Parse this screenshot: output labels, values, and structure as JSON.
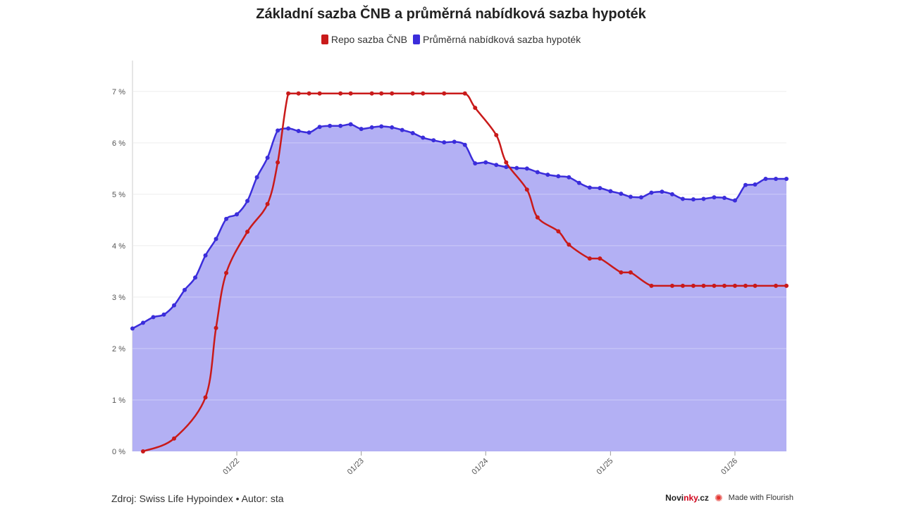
{
  "colors": {
    "repo": "#c91a1a",
    "mortgage": "#3b2ddb",
    "area": "#b3b0f4",
    "grid": "#e8e8e8",
    "brand_red": "#d0021b"
  },
  "footer": {
    "source": "Zdroj: Swiss Life Hypoindex • Autor: sta",
    "brand_a": "Novi",
    "brand_b": "nky",
    "brand_c": ".cz",
    "flourish": "Made with Flourish",
    "flourish_icon": "flourish-burst-icon"
  },
  "chart_data": {
    "type": "line",
    "title": "Základní sazba ČNB a průměrná nabídková sazba hypoték",
    "xlabel": "",
    "ylabel": "",
    "ylim": [
      0,
      7.6
    ],
    "xlim": [
      "2021-03-01",
      "2026-06-01"
    ],
    "grid": true,
    "legend_position": "top-center",
    "yticks": [
      0,
      1,
      2,
      3,
      4,
      5,
      6,
      7
    ],
    "ytick_labels": [
      "0 %",
      "1 %",
      "2 %",
      "3 %",
      "4 %",
      "5 %",
      "6 %",
      "7 %"
    ],
    "xticks": [
      "2022-01-01",
      "2023-01-01",
      "2024-01-01",
      "2025-01-01",
      "2026-01-01"
    ],
    "xtick_labels": [
      "01/22",
      "01/23",
      "01/24",
      "01/25",
      "01/26"
    ],
    "series": [
      {
        "name": "Repo sazba ČNB",
        "color": "#c91a1a",
        "x": [
          "2021-04-01",
          "2021-07-01",
          "2021-10-01",
          "2021-11-01",
          "2021-12-01",
          "2022-02-01",
          "2022-04-01",
          "2022-05-01",
          "2022-06-01",
          "2022-07-01",
          "2022-08-01",
          "2022-09-01",
          "2022-11-01",
          "2022-12-01",
          "2023-02-01",
          "2023-03-01",
          "2023-04-01",
          "2023-06-01",
          "2023-07-01",
          "2023-09-01",
          "2023-11-01",
          "2023-12-01",
          "2024-02-01",
          "2024-03-01",
          "2024-05-01",
          "2024-06-01",
          "2024-08-01",
          "2024-09-01",
          "2024-11-01",
          "2024-12-01",
          "2025-02-01",
          "2025-03-01",
          "2025-05-01",
          "2025-07-01",
          "2025-08-01",
          "2025-09-01",
          "2025-10-01",
          "2025-11-01",
          "2025-12-01",
          "2026-01-01",
          "2026-02-01",
          "2026-03-01",
          "2026-05-01",
          "2026-06-01"
        ],
        "values": [
          0.0,
          0.25,
          1.05,
          2.4,
          3.47,
          4.27,
          4.81,
          5.62,
          6.96,
          6.96,
          6.96,
          6.96,
          6.96,
          6.96,
          6.96,
          6.96,
          6.96,
          6.96,
          6.96,
          6.96,
          6.96,
          6.68,
          6.15,
          5.62,
          5.09,
          4.55,
          4.28,
          4.02,
          3.75,
          3.75,
          3.48,
          3.48,
          3.22,
          3.22,
          3.22,
          3.22,
          3.22,
          3.22,
          3.22,
          3.22,
          3.22,
          3.22,
          3.22,
          3.22
        ]
      },
      {
        "name": "Průměrná nabídková sazba hypoték",
        "color": "#3b2ddb",
        "x": [
          "2021-03-01",
          "2021-04-01",
          "2021-05-01",
          "2021-06-01",
          "2021-07-01",
          "2021-08-01",
          "2021-09-01",
          "2021-10-01",
          "2021-11-01",
          "2021-12-01",
          "2022-01-01",
          "2022-02-01",
          "2022-03-01",
          "2022-04-01",
          "2022-05-01",
          "2022-06-01",
          "2022-07-01",
          "2022-08-01",
          "2022-09-01",
          "2022-10-01",
          "2022-11-01",
          "2022-12-01",
          "2023-01-01",
          "2023-02-01",
          "2023-03-01",
          "2023-04-01",
          "2023-05-01",
          "2023-06-01",
          "2023-07-01",
          "2023-08-01",
          "2023-09-01",
          "2023-10-01",
          "2023-11-01",
          "2023-12-01",
          "2024-01-01",
          "2024-02-01",
          "2024-03-01",
          "2024-04-01",
          "2024-05-01",
          "2024-06-01",
          "2024-07-01",
          "2024-08-01",
          "2024-09-01",
          "2024-10-01",
          "2024-11-01",
          "2024-12-01",
          "2025-01-01",
          "2025-02-01",
          "2025-03-01",
          "2025-04-01",
          "2025-05-01",
          "2025-06-01",
          "2025-07-01",
          "2025-08-01",
          "2025-09-01",
          "2025-10-01",
          "2025-11-01",
          "2025-12-01",
          "2026-01-01",
          "2026-02-01",
          "2026-03-01",
          "2026-04-01",
          "2026-05-01",
          "2026-06-01"
        ],
        "values": [
          2.39,
          2.5,
          2.61,
          2.66,
          2.84,
          3.14,
          3.38,
          3.81,
          4.13,
          4.52,
          4.61,
          4.87,
          5.33,
          5.71,
          6.24,
          6.28,
          6.23,
          6.2,
          6.31,
          6.33,
          6.33,
          6.36,
          6.27,
          6.3,
          6.32,
          6.3,
          6.25,
          6.19,
          6.1,
          6.05,
          6.01,
          6.02,
          5.96,
          5.6,
          5.62,
          5.57,
          5.53,
          5.51,
          5.5,
          5.43,
          5.38,
          5.35,
          5.33,
          5.22,
          5.13,
          5.12,
          5.06,
          5.01,
          4.95,
          4.94,
          5.03,
          5.05,
          5.0,
          4.91,
          4.9,
          4.91,
          4.94,
          4.93,
          4.88,
          5.18,
          5.19,
          5.3,
          5.3,
          5.3
        ]
      }
    ]
  }
}
